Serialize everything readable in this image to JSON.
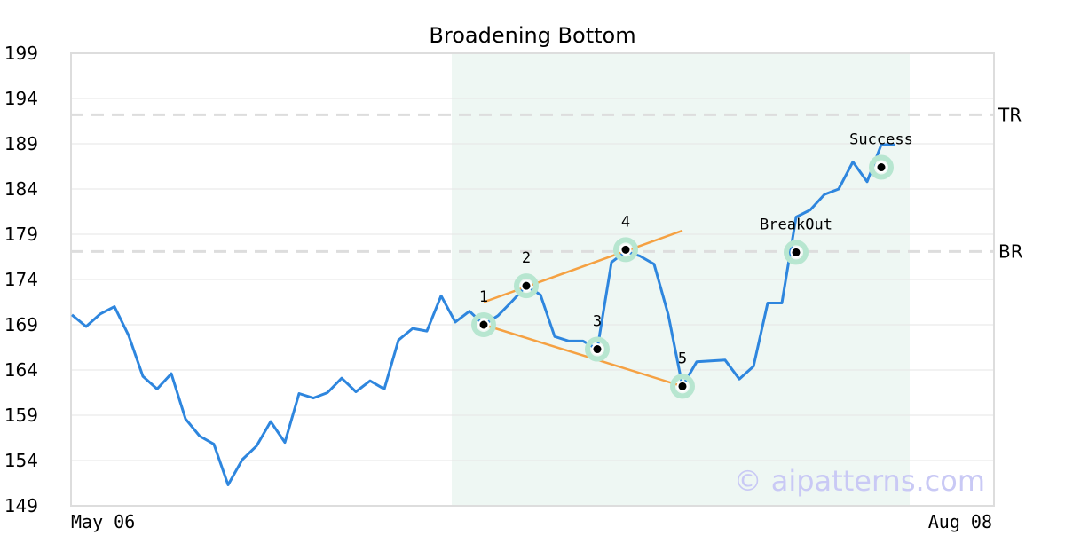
{
  "chart_data": {
    "type": "line",
    "title": "Broadening Bottom",
    "xlabel": "",
    "ylabel": "",
    "x_tick_labels": [
      "May 06",
      "Aug 08"
    ],
    "y_ticks": [
      "199",
      "194",
      "189",
      "184",
      "179",
      "174",
      "169",
      "164",
      "159",
      "154",
      "149"
    ],
    "ylim": [
      149,
      199
    ],
    "grid": "horizontal",
    "series": [
      {
        "color": "#2e86de",
        "values": [
          170.1,
          168.8,
          170.2,
          171.0,
          167.8,
          163.3,
          161.9,
          163.6,
          158.6,
          156.7,
          155.8,
          151.3,
          154.1,
          155.6,
          158.3,
          156.0,
          161.4,
          160.9,
          161.5,
          163.1,
          161.6,
          162.8,
          161.9,
          167.3,
          168.6,
          168.3,
          172.2,
          169.3,
          170.5,
          169.0,
          170.0,
          171.6,
          173.3,
          172.3,
          167.7,
          167.2,
          167.2,
          166.3,
          175.9,
          177.1,
          176.6,
          175.7,
          170.1,
          162.2,
          164.9,
          165.0,
          165.1,
          163.0,
          164.4,
          171.4,
          171.4,
          180.9,
          181.7,
          183.4,
          184.0,
          187.0,
          184.8,
          188.9,
          188.9
        ]
      }
    ],
    "shaded_region": {
      "start_index": 27,
      "end_index": 59,
      "color": "#eef7f3"
    },
    "horizontal_lines": [
      {
        "label": "TR",
        "value": 192.2
      },
      {
        "label": "BR",
        "value": 177.1
      }
    ],
    "trend_lines": [
      {
        "color": "#f5a142",
        "from": [
          29,
          171.5
        ],
        "to": [
          43,
          179.4
        ]
      },
      {
        "color": "#f5a142",
        "from": [
          29,
          169.0
        ],
        "to": [
          43,
          162.2
        ]
      }
    ],
    "points": [
      {
        "label": "1",
        "index": 29,
        "value": 169.0
      },
      {
        "label": "2",
        "index": 32,
        "value": 173.3
      },
      {
        "label": "3",
        "index": 37,
        "value": 166.3
      },
      {
        "label": "4",
        "index": 39,
        "value": 177.3
      },
      {
        "label": "5",
        "index": 43,
        "value": 162.2
      },
      {
        "label": "BreakOut",
        "index": 51,
        "value": 177.0
      },
      {
        "label": "Success",
        "index": 57,
        "value": 186.4
      }
    ],
    "watermark": "© aipatterns.com"
  }
}
